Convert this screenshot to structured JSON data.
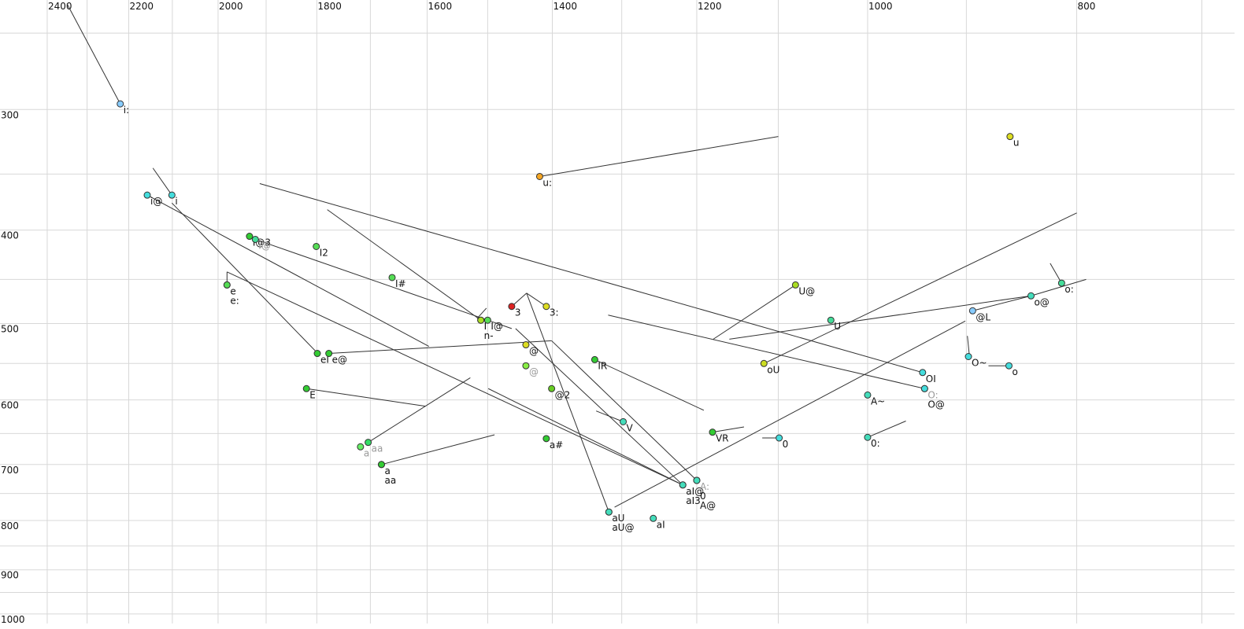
{
  "chart_data": {
    "type": "vowel-scatter",
    "xscale": "log",
    "yscale": "log",
    "xlim": [
      2524,
      676
    ],
    "ylim": [
      231,
      1023
    ],
    "xticks": [
      2400,
      2200,
      2000,
      1800,
      1600,
      1400,
      1200,
      1000,
      800
    ],
    "yticks": [
      300,
      400,
      500,
      600,
      700,
      800,
      900,
      1000
    ],
    "xminor": [
      2300,
      2100,
      1900,
      1700,
      1500,
      1300,
      1100,
      900,
      700
    ],
    "yminor": [
      250,
      350,
      450,
      550,
      650,
      750,
      850,
      950
    ],
    "grid": true,
    "grid_color": "#d8d8d8",
    "line_color": "#333333",
    "points": [
      {
        "label": "i:",
        "x": 2220,
        "y": 296,
        "color": "#88ccff"
      },
      {
        "label": "u",
        "x": 859,
        "y": 320,
        "color": "#dddd22"
      },
      {
        "label": "u:",
        "x": 1419,
        "y": 352,
        "color": "#f5a623"
      },
      {
        "label": "i@",
        "x": 2157,
        "y": 368,
        "color": "#44dddd"
      },
      {
        "label": "i",
        "x": 2101,
        "y": 368,
        "color": "#44dddd"
      },
      {
        "label": "I@3",
        "x": 1934,
        "y": 406,
        "color": "#33cc33"
      },
      {
        "label": "I@",
        "x": 1922,
        "y": 409,
        "color": "#44dd99",
        "muted": true
      },
      {
        "label": "I2",
        "x": 1801,
        "y": 416,
        "color": "#55dd55"
      },
      {
        "label": "I#",
        "x": 1661,
        "y": 448,
        "color": "#55dd55"
      },
      {
        "label": "e",
        "x": 1981,
        "y": 456,
        "color": "#55dd55"
      },
      {
        "label": "e:",
        "x": 1981,
        "y": 456,
        "color": "#55dd55"
      },
      {
        "label": "I",
        "x": 1511,
        "y": 496,
        "color": "#aadd22"
      },
      {
        "label": "n-",
        "x": 1511,
        "y": 496,
        "color": "#aadd22"
      },
      {
        "label": "I@",
        "x": 1500,
        "y": 496,
        "color": "#55dd55"
      },
      {
        "label": "3",
        "x": 1462,
        "y": 480,
        "color": "#dd2222"
      },
      {
        "label": "3:",
        "x": 1409,
        "y": 480,
        "color": "#dddd22"
      },
      {
        "label": "@",
        "x": 1440,
        "y": 526,
        "color": "#dddd22"
      },
      {
        "label": "@",
        "x": 1440,
        "y": 553,
        "color": "#88ee44",
        "muted": true
      },
      {
        "label": "@2",
        "x": 1401,
        "y": 584,
        "color": "#66cc22"
      },
      {
        "label": "a#",
        "x": 1409,
        "y": 658,
        "color": "#33cc33"
      },
      {
        "label": "eI",
        "x": 1799,
        "y": 537,
        "color": "#33cc33"
      },
      {
        "label": "e@",
        "x": 1777,
        "y": 537,
        "color": "#33cc33"
      },
      {
        "label": "E",
        "x": 1820,
        "y": 584,
        "color": "#33cc33"
      },
      {
        "label": "a",
        "x": 1718,
        "y": 671,
        "color": "#66ee66",
        "muted": true
      },
      {
        "label": "aa",
        "x": 1704,
        "y": 664,
        "color": "#33dd66",
        "muted": true
      },
      {
        "label": "a",
        "x": 1680,
        "y": 700,
        "color": "#33cc33"
      },
      {
        "label": "aa",
        "x": 1680,
        "y": 700,
        "color": "#33cc33"
      },
      {
        "label": "IR",
        "x": 1338,
        "y": 545,
        "color": "#33cc33"
      },
      {
        "label": "V",
        "x": 1298,
        "y": 632,
        "color": "#44ddbb"
      },
      {
        "label": "aU",
        "x": 1318,
        "y": 784,
        "color": "#44ddbb"
      },
      {
        "label": "aU@",
        "x": 1318,
        "y": 784,
        "color": "#44ddbb"
      },
      {
        "label": "aI",
        "x": 1257,
        "y": 796,
        "color": "#44ddbb"
      },
      {
        "label": "aI@",
        "x": 1218,
        "y": 735,
        "color": "#44ddbb"
      },
      {
        "label": "aI3",
        "x": 1218,
        "y": 735,
        "color": "#44ddbb"
      },
      {
        "label": "A:",
        "x": 1200,
        "y": 727,
        "color": "#44ddbb",
        "muted": true
      },
      {
        "label": "0",
        "x": 1200,
        "y": 727,
        "color": "#44ddbb"
      },
      {
        "label": "A@",
        "x": 1200,
        "y": 727,
        "color": "#44ddbb"
      },
      {
        "label": "VR",
        "x": 1180,
        "y": 648,
        "color": "#33cc33"
      },
      {
        "label": "0",
        "x": 1099,
        "y": 657,
        "color": "#44dddd"
      },
      {
        "label": "0:",
        "x": 1000,
        "y": 656,
        "color": "#44ddbb"
      },
      {
        "label": "A~",
        "x": 1000,
        "y": 593,
        "color": "#44ddbb"
      },
      {
        "label": "oU",
        "x": 1117,
        "y": 550,
        "color": "#ccdd22"
      },
      {
        "label": "U@",
        "x": 1080,
        "y": 456,
        "color": "#aadd22"
      },
      {
        "label": "U",
        "x": 1040,
        "y": 496,
        "color": "#44dd99"
      },
      {
        "label": "OI",
        "x": 943,
        "y": 562,
        "color": "#44dddd"
      },
      {
        "label": "O:",
        "x": 941,
        "y": 584,
        "color": "#44dddd",
        "muted": true
      },
      {
        "label": "O@",
        "x": 941,
        "y": 584,
        "color": "#44dddd"
      },
      {
        "label": "@L",
        "x": 894,
        "y": 485,
        "color": "#88ccff"
      },
      {
        "label": "o@",
        "x": 840,
        "y": 468,
        "color": "#44ddbb"
      },
      {
        "label": "o:",
        "x": 813,
        "y": 454,
        "color": "#44dd99"
      },
      {
        "label": "O~",
        "x": 898,
        "y": 541,
        "color": "#44dddd"
      },
      {
        "label": "o",
        "x": 860,
        "y": 553,
        "color": "#44dddd"
      }
    ],
    "segments": [
      [
        2220,
        296,
        2350,
        233
      ],
      [
        1419,
        352,
        1100,
        320
      ],
      [
        2101,
        368,
        2144,
        345
      ],
      [
        2157,
        368,
        1597,
        528
      ],
      [
        2101,
        375,
        1798,
        537
      ],
      [
        1913,
        358,
        943,
        562
      ],
      [
        1922,
        409,
        1462,
        506
      ],
      [
        1780,
        381,
        1511,
        496
      ],
      [
        1981,
        456,
        1981,
        442
      ],
      [
        1981,
        442,
        1218,
        735
      ],
      [
        1777,
        537,
        1401,
        521
      ],
      [
        1401,
        521,
        1200,
        727
      ],
      [
        1456,
        506,
        1218,
        735
      ],
      [
        1462,
        480,
        1439,
        465
      ],
      [
        1439,
        465,
        1318,
        784
      ],
      [
        1439,
        465,
        1409,
        480
      ],
      [
        1820,
        584,
        1603,
        609
      ],
      [
        1704,
        664,
        1528,
        569
      ],
      [
        1680,
        700,
        1489,
        652
      ],
      [
        1499,
        584,
        1218,
        735
      ],
      [
        1338,
        545,
        1191,
        615
      ],
      [
        1336,
        616,
        1298,
        632
      ],
      [
        1117,
        550,
        800,
        384
      ],
      [
        1310,
        775,
        901,
        497
      ],
      [
        1180,
        648,
        1141,
        640
      ],
      [
        1119,
        657,
        1099,
        657
      ],
      [
        1000,
        656,
        960,
        631
      ],
      [
        1179,
        519,
        1080,
        456
      ],
      [
        1159,
        519,
        840,
        468
      ],
      [
        1319,
        490,
        941,
        584
      ],
      [
        894,
        485,
        840,
        468
      ],
      [
        840,
        468,
        792,
        450
      ],
      [
        823,
        433,
        813,
        454
      ],
      [
        899,
        515,
        897,
        541
      ],
      [
        879,
        553,
        860,
        553
      ],
      [
        1517,
        494,
        1502,
        482
      ]
    ]
  }
}
